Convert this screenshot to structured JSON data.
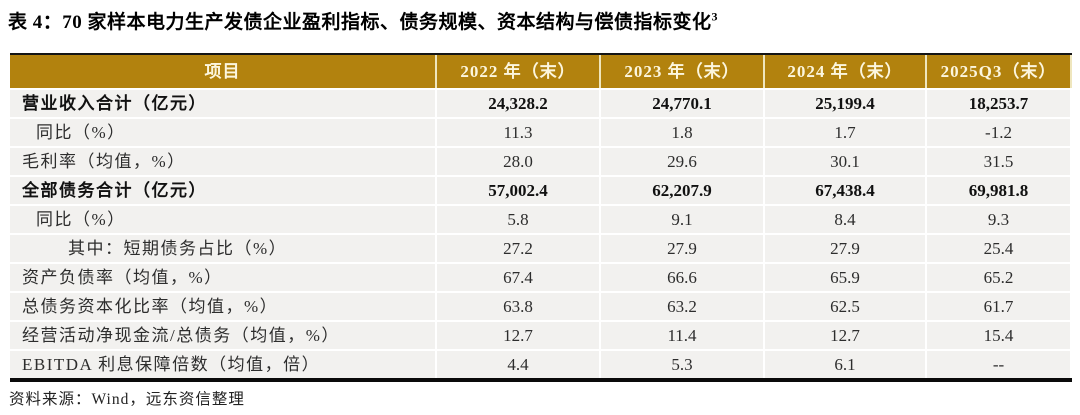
{
  "title": {
    "text": "表 4：70 家样本电力生产发债企业盈利指标、债务规模、资本结构与偿债指标变化",
    "footnote": "3"
  },
  "table": {
    "columns": [
      "项目",
      "2022 年（末）",
      "2023 年（末）",
      "2024 年（末）",
      "2025Q3（末）"
    ],
    "rows": [
      {
        "label": "营业收入合计（亿元）",
        "indent": 0,
        "bold": true,
        "values": [
          "24,328.2",
          "24,770.1",
          "25,199.4",
          "18,253.7"
        ]
      },
      {
        "label": "同比（%）",
        "indent": 1,
        "bold": false,
        "values": [
          "11.3",
          "1.8",
          "1.7",
          "-1.2"
        ]
      },
      {
        "label": "毛利率（均值，%）",
        "indent": 0,
        "bold": false,
        "values": [
          "28.0",
          "29.6",
          "30.1",
          "31.5"
        ]
      },
      {
        "label": "全部债务合计（亿元）",
        "indent": 0,
        "bold": true,
        "values": [
          "57,002.4",
          "62,207.9",
          "67,438.4",
          "69,981.8"
        ]
      },
      {
        "label": "同比（%）",
        "indent": 1,
        "bold": false,
        "values": [
          "5.8",
          "9.1",
          "8.4",
          "9.3"
        ]
      },
      {
        "label": "其中：短期债务占比（%）",
        "indent": 2,
        "bold": false,
        "values": [
          "27.2",
          "27.9",
          "27.9",
          "25.4"
        ]
      },
      {
        "label": "资产负债率（均值，%）",
        "indent": 0,
        "bold": false,
        "values": [
          "67.4",
          "66.6",
          "65.9",
          "65.2"
        ]
      },
      {
        "label": "总债务资本化比率（均值，%）",
        "indent": 0,
        "bold": false,
        "values": [
          "63.8",
          "63.2",
          "62.5",
          "61.7"
        ]
      },
      {
        "label": "经营活动净现金流/总债务（均值，%）",
        "indent": 0,
        "bold": false,
        "values": [
          "12.7",
          "11.4",
          "12.7",
          "15.4"
        ]
      },
      {
        "label": "EBITDA 利息保障倍数（均值，倍）",
        "indent": 0,
        "bold": false,
        "values": [
          "4.4",
          "5.3",
          "6.1",
          "--"
        ]
      }
    ]
  },
  "footer": {
    "source": "资料来源：Wind，远东资信整理"
  },
  "colors": {
    "header_bg": "#B2820E",
    "header_text": "#FCF6DE",
    "row_bg": "#F2F1EF",
    "rule": "#0A0A0A"
  }
}
